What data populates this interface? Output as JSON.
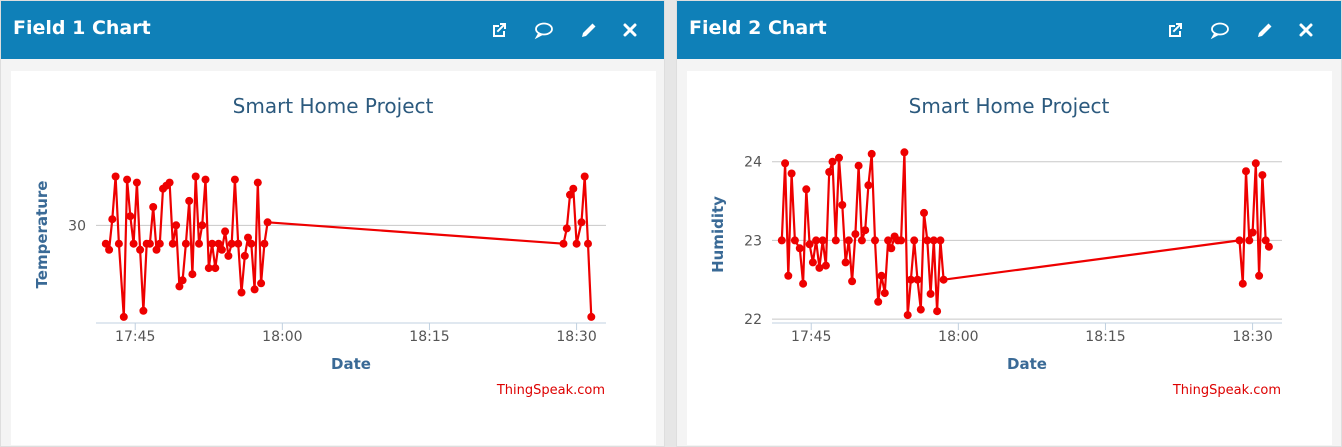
{
  "panels": [
    {
      "title": "Field 1 Chart"
    },
    {
      "title": "Field 2 Chart"
    }
  ],
  "icons": [
    "open-external-icon",
    "comment-icon",
    "edit-pencil-icon",
    "close-icon"
  ],
  "colors": {
    "header": "#0f80b8",
    "series": "#ee0000",
    "title": "#2c5a7e",
    "credit": "#dd0000"
  },
  "chart_data": [
    {
      "type": "line",
      "title": "Smart Home Project",
      "xlabel": "Date",
      "ylabel": "Temperature",
      "credit": "ThingSpeak.com",
      "x_unit": "time HH:MM",
      "x_ticks": [
        "17:45",
        "18:00",
        "18:15",
        "18:30"
      ],
      "y_ticks": [
        30
      ],
      "xlim": [
        "17:41",
        "18:33"
      ],
      "ylim": [
        28.4,
        31.3
      ],
      "grid": true,
      "series": [
        {
          "color": "#ee0000",
          "points": [
            [
              "17:42:00",
              29.7
            ],
            [
              "17:42:20",
              29.6
            ],
            [
              "17:42:40",
              30.1
            ],
            [
              "17:43:00",
              30.8
            ],
            [
              "17:43:20",
              29.7
            ],
            [
              "17:43:50",
              28.5
            ],
            [
              "17:44:10",
              30.75
            ],
            [
              "17:44:30",
              30.15
            ],
            [
              "17:44:50",
              29.7
            ],
            [
              "17:45:10",
              30.7
            ],
            [
              "17:45:30",
              29.6
            ],
            [
              "17:45:50",
              28.6
            ],
            [
              "17:46:10",
              29.7
            ],
            [
              "17:46:30",
              29.7
            ],
            [
              "17:46:50",
              30.3
            ],
            [
              "17:47:10",
              29.6
            ],
            [
              "17:47:30",
              29.7
            ],
            [
              "17:47:50",
              30.6
            ],
            [
              "17:48:10",
              30.65
            ],
            [
              "17:48:30",
              30.7
            ],
            [
              "17:48:50",
              29.7
            ],
            [
              "17:49:10",
              30.0
            ],
            [
              "17:49:30",
              29.0
            ],
            [
              "17:49:50",
              29.1
            ],
            [
              "17:50:10",
              29.7
            ],
            [
              "17:50:30",
              30.4
            ],
            [
              "17:50:50",
              29.2
            ],
            [
              "17:51:10",
              30.8
            ],
            [
              "17:51:30",
              29.7
            ],
            [
              "17:51:50",
              30.0
            ],
            [
              "17:52:10",
              30.75
            ],
            [
              "17:52:30",
              29.3
            ],
            [
              "17:52:50",
              29.7
            ],
            [
              "17:53:10",
              29.3
            ],
            [
              "17:53:30",
              29.7
            ],
            [
              "17:53:50",
              29.6
            ],
            [
              "17:54:10",
              29.9
            ],
            [
              "17:54:30",
              29.5
            ],
            [
              "17:54:50",
              29.7
            ],
            [
              "17:55:10",
              30.75
            ],
            [
              "17:55:30",
              29.7
            ],
            [
              "17:55:50",
              28.9
            ],
            [
              "17:56:10",
              29.5
            ],
            [
              "17:56:30",
              29.8
            ],
            [
              "17:56:50",
              29.7
            ],
            [
              "17:57:10",
              28.95
            ],
            [
              "17:57:30",
              30.7
            ],
            [
              "17:57:50",
              29.05
            ],
            [
              "17:58:10",
              29.7
            ],
            [
              "17:58:30",
              30.05
            ],
            [
              "18:28:40",
              29.7
            ],
            [
              "18:29:00",
              29.95
            ],
            [
              "18:29:20",
              30.5
            ],
            [
              "18:29:40",
              30.6
            ],
            [
              "18:30:00",
              29.7
            ],
            [
              "18:30:30",
              30.05
            ],
            [
              "18:30:50",
              30.8
            ],
            [
              "18:31:10",
              29.7
            ],
            [
              "18:31:30",
              28.5
            ]
          ]
        }
      ]
    },
    {
      "type": "line",
      "title": "Smart Home Project",
      "xlabel": "Date",
      "ylabel": "Humidity",
      "credit": "ThingSpeak.com",
      "x_unit": "time HH:MM",
      "x_ticks": [
        "17:45",
        "18:00",
        "18:15",
        "18:30"
      ],
      "y_ticks": [
        22,
        23,
        24
      ],
      "xlim": [
        "17:41",
        "18:33"
      ],
      "ylim": [
        21.95,
        24.2
      ],
      "grid": true,
      "series": [
        {
          "color": "#ee0000",
          "points": [
            [
              "17:42:00",
              23.0
            ],
            [
              "17:42:20",
              23.98
            ],
            [
              "17:42:40",
              22.55
            ],
            [
              "17:43:00",
              23.85
            ],
            [
              "17:43:20",
              23.0
            ],
            [
              "17:43:50",
              22.9
            ],
            [
              "17:44:10",
              22.45
            ],
            [
              "17:44:30",
              23.65
            ],
            [
              "17:44:50",
              22.95
            ],
            [
              "17:45:10",
              22.72
            ],
            [
              "17:45:30",
              23.0
            ],
            [
              "17:45:50",
              22.65
            ],
            [
              "17:46:10",
              23.0
            ],
            [
              "17:46:30",
              22.68
            ],
            [
              "17:46:50",
              23.87
            ],
            [
              "17:47:10",
              24.0
            ],
            [
              "17:47:30",
              23.0
            ],
            [
              "17:47:50",
              24.05
            ],
            [
              "17:48:10",
              23.45
            ],
            [
              "17:48:30",
              22.72
            ],
            [
              "17:48:50",
              23.0
            ],
            [
              "17:49:10",
              22.48
            ],
            [
              "17:49:30",
              23.08
            ],
            [
              "17:49:50",
              23.95
            ],
            [
              "17:50:10",
              23.0
            ],
            [
              "17:50:30",
              23.13
            ],
            [
              "17:50:50",
              23.7
            ],
            [
              "17:51:10",
              24.1
            ],
            [
              "17:51:30",
              23.0
            ],
            [
              "17:51:50",
              22.22
            ],
            [
              "17:52:10",
              22.55
            ],
            [
              "17:52:30",
              22.33
            ],
            [
              "17:52:50",
              23.0
            ],
            [
              "17:53:10",
              22.9
            ],
            [
              "17:53:30",
              23.05
            ],
            [
              "17:53:50",
              23.0
            ],
            [
              "17:54:10",
              23.0
            ],
            [
              "17:54:30",
              24.12
            ],
            [
              "17:54:50",
              22.05
            ],
            [
              "17:55:10",
              22.5
            ],
            [
              "17:55:30",
              23.0
            ],
            [
              "17:55:50",
              22.5
            ],
            [
              "17:56:10",
              22.12
            ],
            [
              "17:56:30",
              23.35
            ],
            [
              "17:56:50",
              23.0
            ],
            [
              "17:57:10",
              22.32
            ],
            [
              "17:57:30",
              23.0
            ],
            [
              "17:57:50",
              22.1
            ],
            [
              "17:58:10",
              23.0
            ],
            [
              "17:58:30",
              22.5
            ],
            [
              "18:28:40",
              23.0
            ],
            [
              "18:29:00",
              22.45
            ],
            [
              "18:29:20",
              23.88
            ],
            [
              "18:29:40",
              23.0
            ],
            [
              "18:30:00",
              23.1
            ],
            [
              "18:30:20",
              23.98
            ],
            [
              "18:30:40",
              22.55
            ],
            [
              "18:31:00",
              23.83
            ],
            [
              "18:31:20",
              23.0
            ],
            [
              "18:31:40",
              22.92
            ]
          ]
        }
      ]
    }
  ]
}
